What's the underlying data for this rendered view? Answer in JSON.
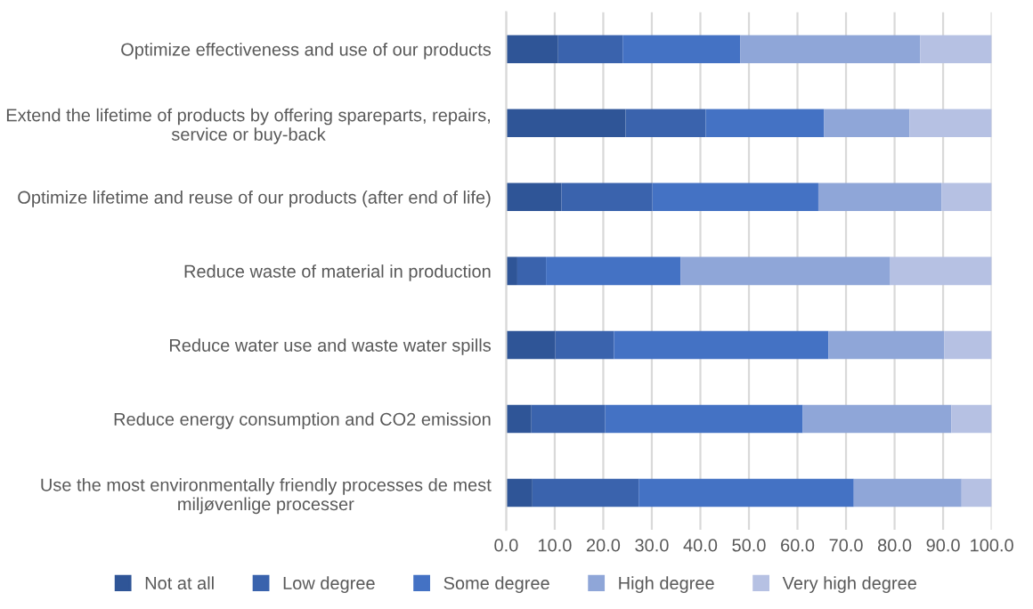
{
  "chart_data": {
    "type": "bar",
    "orientation": "horizontal",
    "stacked": true,
    "categories": [
      "Optimize effectiveness and use of our products",
      "Extend the lifetime of products by offering spareparts, repairs,\nservice or buy-back",
      "Optimize lifetime and reuse of our products (after end of life)",
      "Reduce waste of material in production",
      "Reduce water use and waste water spills",
      "Reduce energy consumption and CO2 emission",
      "Use the most environmentally friendly processes de mest\nmiljøvenlige processer"
    ],
    "series": [
      {
        "name": "Not at all",
        "color": "#2f5597",
        "values": [
          10.7,
          24.6,
          11.4,
          2.3,
          10.1,
          5.2,
          5.4
        ]
      },
      {
        "name": "Low degree",
        "color": "#3a63ad",
        "values": [
          13.3,
          16.5,
          18.7,
          5.9,
          12.1,
          15.2,
          21.9
        ]
      },
      {
        "name": "Some degree",
        "color": "#4472c4",
        "values": [
          24.2,
          24.4,
          34.2,
          27.7,
          44.2,
          40.7,
          44.3
        ]
      },
      {
        "name": "High degree",
        "color": "#8fa6d8",
        "values": [
          37.1,
          17.6,
          25.4,
          43.2,
          23.8,
          30.6,
          22.2
        ]
      },
      {
        "name": "Very high degree",
        "color": "#b6c1e3",
        "values": [
          14.7,
          16.9,
          10.3,
          20.9,
          9.8,
          8.3,
          6.2
        ]
      }
    ],
    "xlim": [
      0,
      100
    ],
    "xticks": [
      {
        "value": 0,
        "label": "0.0"
      },
      {
        "value": 10,
        "label": "10.0"
      },
      {
        "value": 20,
        "label": "20.0"
      },
      {
        "value": 30,
        "label": "30.0"
      },
      {
        "value": 40,
        "label": "40.0"
      },
      {
        "value": 50,
        "label": "50.0"
      },
      {
        "value": 60,
        "label": "60.0"
      },
      {
        "value": 70,
        "label": "70.0"
      },
      {
        "value": 80,
        "label": "80.0"
      },
      {
        "value": 90,
        "label": "90.0"
      },
      {
        "value": 100,
        "label": "100.0"
      }
    ],
    "grid": "x",
    "legend": "bottom"
  }
}
